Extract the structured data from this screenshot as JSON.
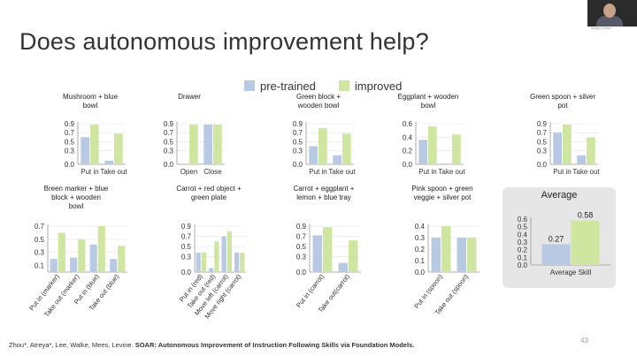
{
  "slide": {
    "title": "Does autonomous improvement help?",
    "page_number": "43",
    "citation_plain": "Zhou*, Atreya*, Lee, Walke, Mees, Levine. ",
    "citation_bold": "SOAR: Autonomous Improvement of Instruction Following Skills via Foundation Models."
  },
  "legend": [
    {
      "name": "pre-trained",
      "color": "#b8c9e3"
    },
    {
      "name": "improved",
      "color": "#cfe6a0"
    }
  ],
  "webcam": {
    "caption": "Sergey Levine"
  },
  "chart_data": [
    {
      "type": "bar",
      "title": "Mushroom + blue bowl",
      "categories": [
        "Put in",
        "Take out"
      ],
      "ylim": [
        0,
        0.9
      ],
      "yticks": [
        "0.9",
        "0.7",
        "0.5",
        "0.3",
        "0.0"
      ],
      "series": [
        {
          "name": "pre-trained",
          "values": [
            0.6,
            0.08
          ]
        },
        {
          "name": "improved",
          "values": [
            0.88,
            0.68
          ]
        }
      ],
      "rotate_labels": false
    },
    {
      "type": "bar",
      "title": "Drawer",
      "categories": [
        "Open",
        "Close"
      ],
      "ylim": [
        0,
        0.9
      ],
      "yticks": [
        "0.9",
        "0.7",
        "0.5",
        "0.3",
        "0.0"
      ],
      "series": [
        {
          "name": "pre-trained",
          "values": [
            0.0,
            0.88
          ]
        },
        {
          "name": "improved",
          "values": [
            0.88,
            0.88
          ]
        }
      ],
      "rotate_labels": false
    },
    {
      "type": "bar",
      "title": "Green block + wooden bowl",
      "categories": [
        "Put in",
        "Take out"
      ],
      "ylim": [
        0,
        0.9
      ],
      "yticks": [
        "0.9",
        "0.7",
        "0.5",
        "0.3",
        "0.0"
      ],
      "series": [
        {
          "name": "pre-trained",
          "values": [
            0.4,
            0.2
          ]
        },
        {
          "name": "improved",
          "values": [
            0.8,
            0.68
          ]
        }
      ],
      "rotate_labels": false
    },
    {
      "type": "bar",
      "title": "Eggplant + wooden bowl",
      "categories": [
        "Put in",
        "Take out"
      ],
      "ylim": [
        0,
        0.6
      ],
      "yticks": [
        "0.6",
        "0.4",
        "0.2",
        "0.0"
      ],
      "series": [
        {
          "name": "pre-trained",
          "values": [
            0.36,
            0.0
          ]
        },
        {
          "name": "improved",
          "values": [
            0.56,
            0.44
          ]
        }
      ],
      "rotate_labels": false
    },
    {
      "type": "bar",
      "title": "Green spoon + silver pot",
      "categories": [
        "Put in",
        "Take out"
      ],
      "ylim": [
        0,
        0.9
      ],
      "yticks": [
        "0.9",
        "0.7",
        "0.5",
        "0.3",
        "0.0"
      ],
      "series": [
        {
          "name": "pre-trained",
          "values": [
            0.7,
            0.2
          ]
        },
        {
          "name": "improved",
          "values": [
            0.88,
            0.6
          ]
        }
      ],
      "rotate_labels": false
    },
    {
      "type": "bar",
      "title": "Breen marker + blue block + wooden bowl",
      "categories": [
        "Put in (marker)",
        "Take out (marker)",
        "Put in (blue)",
        "Take out (blue)"
      ],
      "ylim": [
        0,
        0.7
      ],
      "yticks": [
        "0.7",
        "0.5",
        "0.3",
        "0.1"
      ],
      "series": [
        {
          "name": "pre-trained",
          "values": [
            0.2,
            0.22,
            0.42,
            0.2
          ]
        },
        {
          "name": "improved",
          "values": [
            0.6,
            0.5,
            0.7,
            0.4
          ]
        }
      ],
      "rotate_labels": true
    },
    {
      "type": "bar",
      "title": "Carrot + red object + green plate",
      "categories": [
        "Put in (red)",
        "Take out (red)",
        "Move left (carrot)",
        "Move right (carrot)"
      ],
      "ylim": [
        0,
        0.9
      ],
      "yticks": [
        "0.9",
        "0.7",
        "0.5",
        "0.3",
        "0.0"
      ],
      "series": [
        {
          "name": "pre-trained",
          "values": [
            0.38,
            0.08,
            0.7,
            0.38
          ]
        },
        {
          "name": "improved",
          "values": [
            0.38,
            0.6,
            0.8,
            0.38
          ]
        }
      ],
      "rotate_labels": true
    },
    {
      "type": "bar",
      "title": "Carrot + eggplant + lemon + blue tray",
      "categories": [
        "Put in (carrot)",
        "Take out(carrot)"
      ],
      "ylim": [
        0,
        0.9
      ],
      "yticks": [
        "0.9",
        "0.7",
        "0.5",
        "0.3",
        "0.0"
      ],
      "series": [
        {
          "name": "pre-trained",
          "values": [
            0.72,
            0.18
          ]
        },
        {
          "name": "improved",
          "values": [
            0.88,
            0.62
          ]
        }
      ],
      "rotate_labels": true
    },
    {
      "type": "bar",
      "title": "Pink spoon + green veggie + silver pot",
      "categories": [
        "Put in (spoon)",
        "Take out (spoon)"
      ],
      "ylim": [
        0,
        0.4
      ],
      "yticks": [
        "0.4",
        "0.3",
        "0.2",
        "0.1",
        "0.0"
      ],
      "series": [
        {
          "name": "pre-trained",
          "values": [
            0.3,
            0.3
          ]
        },
        {
          "name": "improved",
          "values": [
            0.4,
            0.3
          ]
        }
      ],
      "rotate_labels": true
    },
    {
      "type": "bar",
      "title": "Average",
      "categories": [
        "Average Skill"
      ],
      "ylim": [
        0,
        0.6
      ],
      "yticks": [
        "0.6",
        "0.5",
        "0.4",
        "0.3",
        "0.2",
        "0.1",
        "0.0"
      ],
      "series": [
        {
          "name": "pre-trained",
          "values": [
            0.27
          ]
        },
        {
          "name": "improved",
          "values": [
            0.58
          ]
        }
      ],
      "data_labels": [
        "0.27",
        "0.58"
      ],
      "rotate_labels": false
    }
  ]
}
